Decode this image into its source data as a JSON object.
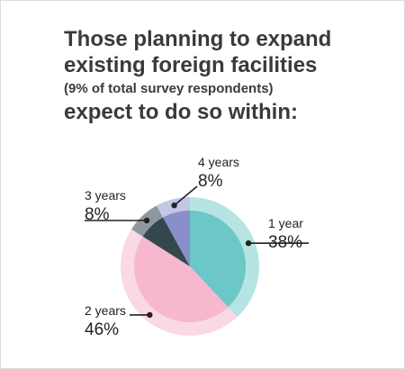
{
  "title": {
    "line1": "Those planning to expand",
    "line2": "existing foreign facilities",
    "line3": "(9% of total survey respondents)",
    "line4": "expect to do so within:"
  },
  "chart_data": {
    "type": "pie",
    "title": "Those planning to expand existing foreign facilities (9% of total survey respondents) expect to do so within:",
    "categories": [
      "1 year",
      "2 years",
      "3 years",
      "4 years"
    ],
    "values": [
      38,
      46,
      8,
      8
    ],
    "value_labels": [
      "38%",
      "46%",
      "8%",
      "8%"
    ],
    "colors": {
      "1 year": {
        "fill": "#6cc7c7",
        "ring": "#b5e4e2"
      },
      "2 years": {
        "fill": "#f7b8cf",
        "ring": "#fbd8e5"
      },
      "3 years": {
        "fill": "#34474c",
        "ring": "#8c9aa0"
      },
      "4 years": {
        "fill": "#8b8fc9",
        "ring": "#c4c6e6"
      }
    },
    "start": "12 o'clock",
    "direction": "clockwise"
  }
}
